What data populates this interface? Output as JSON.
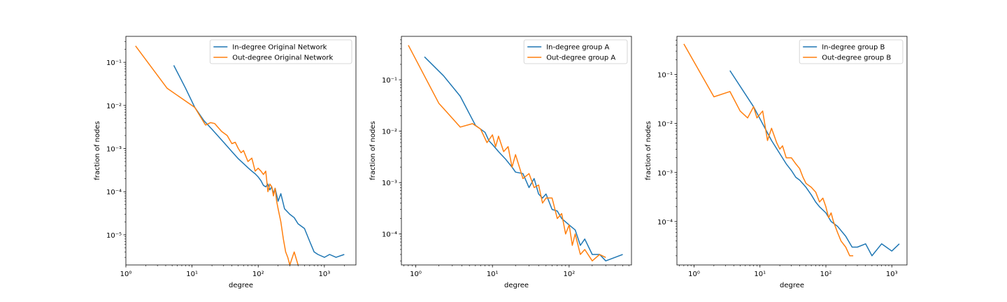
{
  "colors": {
    "in_degree": "#1f77b4",
    "out_degree": "#ff7f0e",
    "frame": "#000000",
    "background": "#ffffff"
  },
  "chart_data": [
    {
      "type": "line",
      "xlabel": "degree",
      "ylabel": "fraction of nodes",
      "xscale": "log",
      "yscale": "log",
      "xlim": [
        1.0,
        3000
      ],
      "ylim": [
        2e-06,
        0.4
      ],
      "x_ticks": [
        1,
        10,
        100,
        1000
      ],
      "y_ticks": [
        1e-05,
        0.0001,
        0.001,
        0.01,
        0.1
      ],
      "grid": false,
      "legend_position": "upper right",
      "series": [
        {
          "name": "In-degree Original Network",
          "color": "#1f77b4",
          "x": [
            5.3,
            8,
            11,
            15,
            20,
            30,
            40,
            50,
            60,
            70,
            80,
            90,
            100,
            110,
            120,
            130,
            140,
            150,
            160,
            170,
            180,
            200,
            220,
            250,
            300,
            350,
            400,
            500,
            600,
            700,
            800,
            1000,
            1200,
            1500,
            2000
          ],
          "y": [
            0.085,
            0.025,
            0.009,
            0.0045,
            0.0028,
            0.0014,
            0.00085,
            0.00058,
            0.00045,
            0.00036,
            0.0003,
            0.00026,
            0.00022,
            0.00018,
            0.00014,
            0.00013,
            0.00015,
            0.00011,
            0.00013,
            9e-05,
            0.00012,
            6e-05,
            9e-05,
            4e-05,
            3e-05,
            2.5e-05,
            1.8e-05,
            1.4e-05,
            7e-06,
            4e-06,
            3.5e-06,
            3e-06,
            3.5e-06,
            3e-06,
            3.5e-06
          ]
        },
        {
          "name": "Out-degree Original Network",
          "color": "#ff7f0e",
          "x": [
            1.4,
            4.2,
            11,
            16,
            19,
            22,
            28,
            34,
            40,
            45,
            50,
            55,
            60,
            70,
            80,
            90,
            100,
            110,
            120,
            130,
            140,
            150,
            160,
            170,
            180,
            190,
            200,
            220,
            240,
            260,
            280,
            300,
            350,
            400
          ],
          "y": [
            0.24,
            0.025,
            0.009,
            0.0035,
            0.004,
            0.0038,
            0.0025,
            0.002,
            0.0013,
            0.0014,
            0.001,
            0.0008,
            0.0009,
            0.0005,
            0.0006,
            0.0003,
            0.00035,
            0.0003,
            0.00025,
            0.0003,
            0.0001,
            0.00015,
            0.00013,
            8e-05,
            0.00012,
            6e-05,
            4e-05,
            2e-05,
            8e-06,
            4e-06,
            3e-06,
            2e-06,
            4e-06,
            2e-06
          ]
        }
      ]
    },
    {
      "type": "line",
      "xlabel": "degree",
      "ylabel": "fraction of nodes",
      "xscale": "log",
      "yscale": "log",
      "xlim": [
        0.65,
        650
      ],
      "ylim": [
        2.5e-05,
        0.7
      ],
      "x_ticks": [
        1,
        10,
        100
      ],
      "y_ticks": [
        0.0001,
        0.001,
        0.01,
        0.1
      ],
      "grid": false,
      "legend_position": "upper right",
      "series": [
        {
          "name": "In-degree group A",
          "color": "#1f77b4",
          "x": [
            1.3,
            2.3,
            3.8,
            6,
            8,
            9,
            10,
            12,
            15,
            18,
            20,
            25,
            30,
            35,
            40,
            45,
            50,
            60,
            70,
            80,
            100,
            120,
            140,
            160,
            200,
            250,
            300,
            500
          ],
          "y": [
            0.28,
            0.12,
            0.048,
            0.013,
            0.0095,
            0.0065,
            0.0055,
            0.004,
            0.0028,
            0.002,
            0.0016,
            0.0015,
            0.0008,
            0.0012,
            0.0006,
            0.0005,
            0.0006,
            0.0003,
            0.00028,
            0.0002,
            0.00015,
            0.00012,
            6e-05,
            8e-05,
            4e-05,
            4e-05,
            3e-05,
            4e-05
          ]
        },
        {
          "name": "Out-degree group A",
          "color": "#ff7f0e",
          "x": [
            0.8,
            2,
            3.8,
            5.5,
            7,
            8.5,
            10,
            11,
            12,
            14,
            16,
            18,
            20,
            25,
            30,
            35,
            40,
            45,
            50,
            60,
            70,
            80,
            90,
            100,
            110,
            120,
            140,
            160,
            200,
            250,
            300
          ],
          "y": [
            0.47,
            0.035,
            0.012,
            0.014,
            0.011,
            0.006,
            0.0085,
            0.005,
            0.008,
            0.004,
            0.005,
            0.002,
            0.0035,
            0.0012,
            0.0015,
            0.0008,
            0.0009,
            0.0004,
            0.0005,
            0.0005,
            0.0002,
            0.00025,
            0.0001,
            0.00015,
            6e-05,
            0.0001,
            4e-05,
            5e-05,
            3e-05,
            4e-05,
            3.5e-05
          ]
        }
      ]
    },
    {
      "type": "line",
      "xlabel": "degree",
      "ylabel": "fraction of nodes",
      "xscale": "log",
      "yscale": "log",
      "xlim": [
        0.55,
        1700
      ],
      "ylim": [
        1.3e-05,
        0.6
      ],
      "x_ticks": [
        1,
        10,
        100,
        1000
      ],
      "y_ticks": [
        0.0001,
        0.001,
        0.01,
        0.1
      ],
      "grid": false,
      "legend_position": "upper right",
      "series": [
        {
          "name": "In-degree group B",
          "color": "#1f77b4",
          "x": [
            3.5,
            8,
            15,
            25,
            30,
            35,
            40,
            50,
            60,
            70,
            80,
            100,
            120,
            150,
            200,
            250,
            300,
            400,
            500,
            700,
            1000,
            1300
          ],
          "y": [
            0.12,
            0.022,
            0.0045,
            0.0015,
            0.0011,
            0.0008,
            0.0007,
            0.0005,
            0.00035,
            0.00025,
            0.0002,
            0.00015,
            0.0001,
            8e-05,
            5e-05,
            3e-05,
            3e-05,
            3.5e-05,
            2e-05,
            3.5e-05,
            2.5e-05,
            3.5e-05
          ]
        },
        {
          "name": "Out-degree group B",
          "color": "#ff7f0e",
          "x": [
            0.7,
            2,
            3.5,
            5,
            6.5,
            8,
            9,
            11,
            13,
            15,
            18,
            20,
            22,
            25,
            30,
            35,
            40,
            45,
            50,
            60,
            70,
            80,
            90,
            100,
            110,
            120,
            130,
            150,
            170,
            200,
            230,
            260
          ],
          "y": [
            0.42,
            0.035,
            0.045,
            0.018,
            0.013,
            0.022,
            0.013,
            0.018,
            0.0045,
            0.008,
            0.004,
            0.003,
            0.0035,
            0.002,
            0.002,
            0.0015,
            0.0012,
            0.0008,
            0.0006,
            0.0005,
            0.0004,
            0.00025,
            0.0003,
            0.0002,
            0.00012,
            0.00015,
            0.0001,
            6e-05,
            4e-05,
            3e-05,
            2e-05,
            2e-05
          ]
        }
      ]
    }
  ]
}
